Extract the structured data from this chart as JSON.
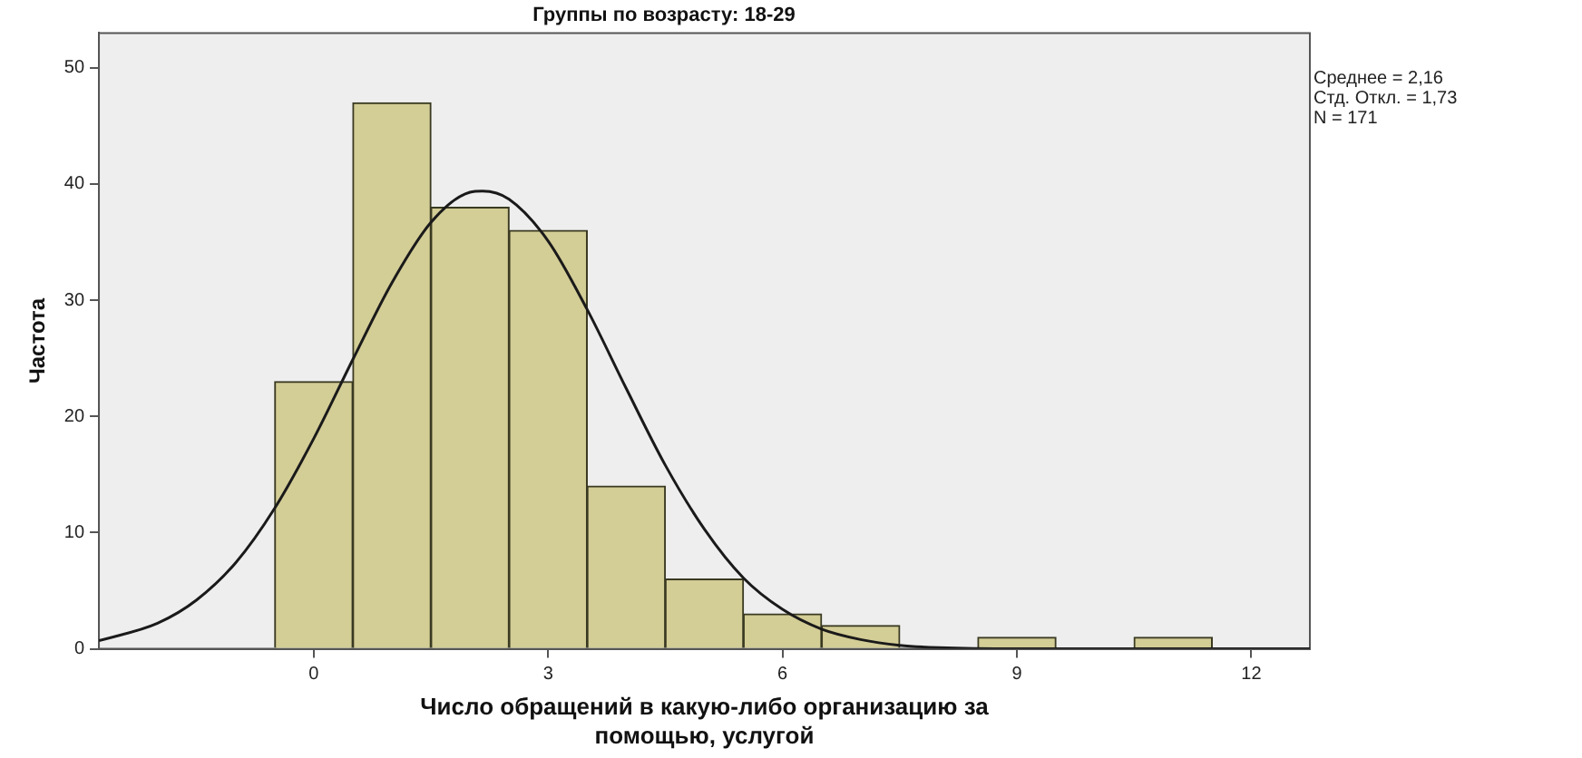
{
  "chart_data": {
    "type": "histogram",
    "title": "Группы по возрасту: 18-29",
    "xlabel": "Число обращений в какую-либо организацию за помощью, услугой",
    "ylabel": "Частота",
    "annotations": [
      "Среднее = 2,16",
      "Стд. Откл. = 1,73",
      "N = 171"
    ],
    "series": [
      {
        "type": "histogram",
        "color": "#d3cd96",
        "bins": [
          -0.5,
          0.5,
          1.5,
          2.5,
          3.5,
          4.5,
          5.5,
          6.5,
          7.5,
          8.5,
          9.5,
          10.5,
          11.5
        ],
        "values": [
          23,
          47,
          38,
          36,
          14,
          6,
          3,
          2,
          0,
          1,
          0,
          1
        ]
      },
      {
        "type": "line",
        "color": "#1a1a1a",
        "x": [
          -2.75,
          -2,
          -1.5,
          -1,
          -0.5,
          0,
          0.5,
          1,
          1.5,
          2,
          2.16,
          2.5,
          3,
          3.5,
          4,
          4.5,
          5,
          5.5,
          6,
          6.5,
          7,
          7.5,
          8,
          9,
          10,
          12.75
        ],
        "values": [
          0.7,
          2.2,
          4.2,
          7.4,
          12.1,
          18.1,
          24.9,
          31.5,
          36.7,
          39.3,
          39.4,
          38.7,
          35.1,
          29.2,
          22.4,
          15.8,
          10.3,
          6.1,
          3.4,
          1.7,
          0.8,
          0.3,
          0.1,
          0,
          0,
          0
        ]
      }
    ],
    "xlim": [
      -2.75,
      12.75
    ],
    "xticks": [
      0,
      3,
      6,
      9,
      12
    ],
    "ylim": [
      0,
      53
    ],
    "yticks": [
      0,
      10,
      20,
      30,
      40,
      50
    ],
    "grid": false
  }
}
